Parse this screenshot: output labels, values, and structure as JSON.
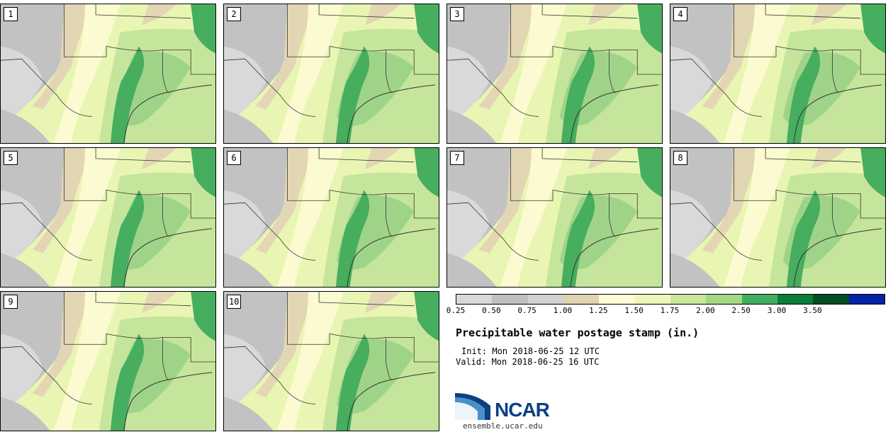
{
  "panels": [
    {
      "label": "1"
    },
    {
      "label": "2"
    },
    {
      "label": "3"
    },
    {
      "label": "4"
    },
    {
      "label": "5"
    },
    {
      "label": "6"
    },
    {
      "label": "7"
    },
    {
      "label": "8"
    },
    {
      "label": "9"
    },
    {
      "label": "10"
    }
  ],
  "legend": {
    "ticks": [
      "0.25",
      "0.50",
      "0.75",
      "1.00",
      "1.25",
      "1.50",
      "1.75",
      "2.00",
      "2.50",
      "3.00",
      "3.50"
    ],
    "colors": [
      "#d9d9d9",
      "#c0c0c0",
      "#d2d2d2",
      "#e0d3b2",
      "#fffbd6",
      "#eef7b9",
      "#c9e79c",
      "#a4d887",
      "#45ad62",
      "#0d7d3c",
      "#034e23",
      "#0424a6"
    ]
  },
  "title": "Precipitable water postage stamp (in.)",
  "init": "Init: Mon 2018-06-25 12 UTC",
  "valid": "Valid: Mon 2018-06-25 16 UTC",
  "logo_text": "NCAR",
  "url": "ensemble.ucar.edu",
  "map_colors": {
    "gray_dark": "#c2c2c2",
    "gray_light": "#d9d9d9",
    "tan": "#e3d6b4",
    "cream": "#fbfad0",
    "yellow_green": "#e9f5b3",
    "light_green": "#c6e59c",
    "mid_green": "#9fd488",
    "dark_green": "#47ad5f",
    "border": "#333333"
  }
}
